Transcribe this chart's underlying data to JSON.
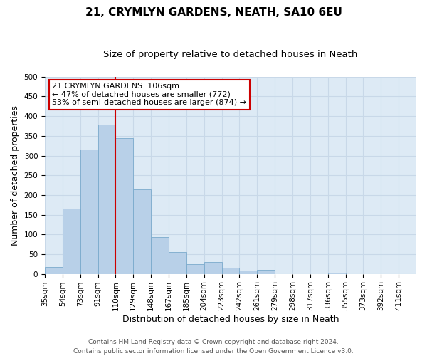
{
  "title": "21, CRYMLYN GARDENS, NEATH, SA10 6EU",
  "subtitle": "Size of property relative to detached houses in Neath",
  "xlabel": "Distribution of detached houses by size in Neath",
  "ylabel": "Number of detached properties",
  "footer_line1": "Contains HM Land Registry data © Crown copyright and database right 2024.",
  "footer_line2": "Contains public sector information licensed under the Open Government Licence v3.0.",
  "bin_labels": [
    "35sqm",
    "54sqm",
    "73sqm",
    "91sqm",
    "110sqm",
    "129sqm",
    "148sqm",
    "167sqm",
    "185sqm",
    "204sqm",
    "223sqm",
    "242sqm",
    "261sqm",
    "279sqm",
    "298sqm",
    "317sqm",
    "336sqm",
    "355sqm",
    "373sqm",
    "392sqm",
    "411sqm"
  ],
  "bar_values": [
    17,
    165,
    315,
    378,
    345,
    215,
    93,
    55,
    25,
    30,
    15,
    8,
    10,
    0,
    0,
    0,
    2,
    0,
    0,
    0,
    0
  ],
  "bar_color": "#b8d0e8",
  "bar_edge_color": "#7aaacc",
  "vline_color": "#cc0000",
  "vline_pos": 4,
  "annotation_title": "21 CRYMLYN GARDENS: 106sqm",
  "annotation_line1": "← 47% of detached houses are smaller (772)",
  "annotation_line2": "53% of semi-detached houses are larger (874) →",
  "annotation_box_facecolor": "#ffffff",
  "annotation_box_edgecolor": "#cc0000",
  "ylim": [
    0,
    500
  ],
  "yticks": [
    0,
    50,
    100,
    150,
    200,
    250,
    300,
    350,
    400,
    450,
    500
  ],
  "title_fontsize": 11,
  "subtitle_fontsize": 9.5,
  "axis_label_fontsize": 9,
  "tick_fontsize": 7.5,
  "annotation_fontsize": 8,
  "footer_fontsize": 6.5,
  "grid_color": "#c8d8e8",
  "bg_color": "#ddeaf5"
}
